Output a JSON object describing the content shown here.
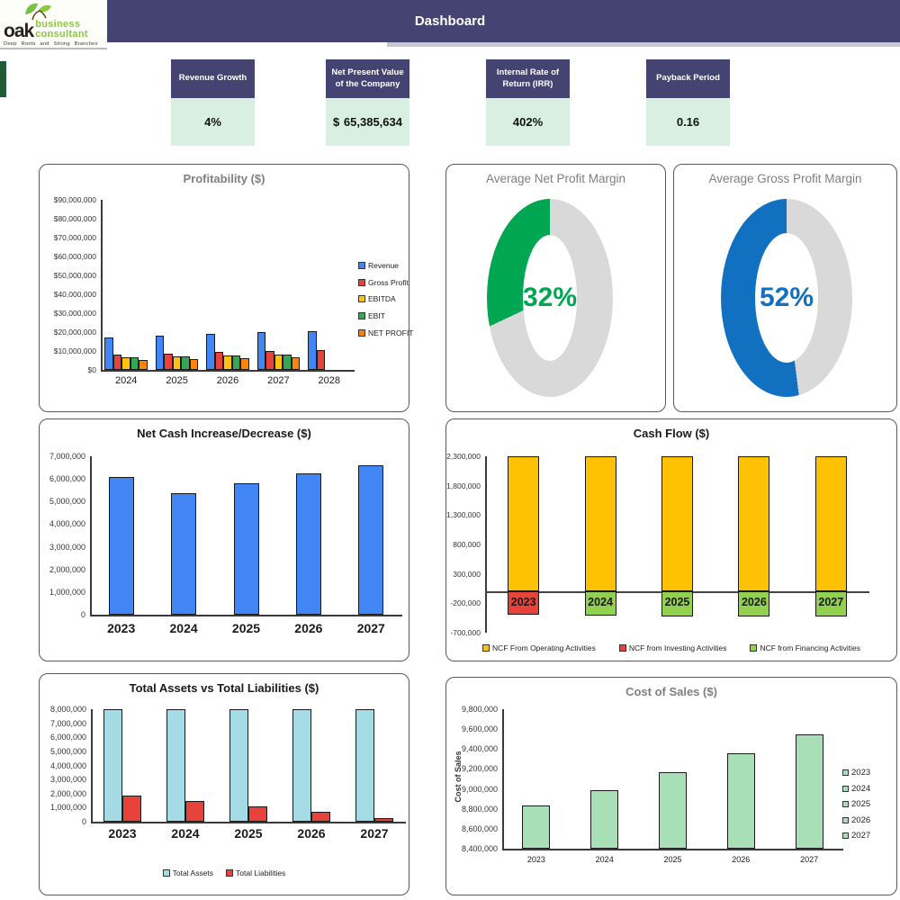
{
  "header": {
    "title": "Dashboard"
  },
  "logo": {
    "word1": "oak",
    "word2": "business",
    "word3": "consultant",
    "tagline": "Deep Roots and Strong Branches",
    "leaf_color": "#7ac143",
    "text_green": "#8dc63f"
  },
  "colors": {
    "header_navy": "#454371",
    "kpi_value_bg": "#d9efe2",
    "accent_green": "#1f5c33"
  },
  "kpis": [
    {
      "label": "Revenue Growth",
      "value": "4%"
    },
    {
      "label": "Net Present Value of the Company",
      "value_prefix": "$",
      "value": "65,385,634"
    },
    {
      "label": "Internal Rate of Return (IRR)",
      "value": "402%"
    },
    {
      "label": "Payback Period",
      "value": "0.16"
    }
  ],
  "chart_data": [
    {
      "id": "profitability",
      "type": "bar",
      "title": "Profitability ($)",
      "categories": [
        "2024",
        "2025",
        "2026",
        "2027",
        "2028"
      ],
      "series": [
        {
          "name": "Revenue",
          "color": "#4285f4",
          "values": [
            17000000,
            18000000,
            19000000,
            20000000,
            20700000
          ]
        },
        {
          "name": "Gross Profit",
          "color": "#e8433a",
          "values": [
            8300000,
            8800000,
            9300000,
            9900000,
            10600000
          ]
        },
        {
          "name": "EBITDA",
          "color": "#ffc20e",
          "values": [
            6900000,
            7100000,
            7600000,
            8200000,
            0
          ]
        },
        {
          "name": "EBIT",
          "color": "#34a853",
          "values": [
            6500000,
            7000000,
            7500000,
            8100000,
            0
          ]
        },
        {
          "name": "NET PROFIT",
          "color": "#ff8308",
          "values": [
            5300000,
            5500000,
            6000000,
            6600000,
            0
          ]
        }
      ],
      "ylim": [
        0,
        90000000
      ],
      "ytick_step": 10000000,
      "ytick_format": "$#,##0",
      "grid": false,
      "legend_position": "right"
    },
    {
      "id": "average_net_profit_margin",
      "type": "pie",
      "title": "Average Net Profit Margin",
      "value_pct": 32,
      "label": "32%",
      "color": "#00a651",
      "track_color": "#d9d9d9"
    },
    {
      "id": "average_gross_profit_margin",
      "type": "pie",
      "title": "Average Gross Profit Margin",
      "value_pct": 52,
      "label": "52%",
      "color": "#1170c0",
      "track_color": "#d9d9d9"
    },
    {
      "id": "net_cash_increase_decrease",
      "type": "bar",
      "title": "Net Cash Increase/Decrease ($)",
      "categories": [
        "2023",
        "2024",
        "2025",
        "2026",
        "2027"
      ],
      "values": [
        6100000,
        5350000,
        5800000,
        6250000,
        6600000
      ],
      "color": "#4285f4",
      "ylim": [
        0,
        7000000
      ],
      "ytick_step": 1000000,
      "grid": false
    },
    {
      "id": "cash_flow",
      "type": "bar",
      "title": "Cash Flow ($)",
      "categories": [
        "2023",
        "2024",
        "2025",
        "2026",
        "2027"
      ],
      "series": [
        {
          "name": "NCF From Operating Activities",
          "color": "#ffc103",
          "values": [
            2300000,
            2300000,
            2300000,
            2300000,
            2300000
          ]
        },
        {
          "name": "NCF from Investing Activities",
          "color": "#e8433a",
          "values": [
            -400000,
            0,
            0,
            0,
            0
          ]
        },
        {
          "name": "NCF from Financing Activities",
          "color": "#92d050",
          "values": [
            0,
            -410000,
            -420000,
            -420000,
            -430000
          ]
        }
      ],
      "ylim": [
        -700000,
        2300000
      ],
      "ytick_step": 500000,
      "grid": false,
      "legend_position": "bottom"
    },
    {
      "id": "total_assets_vs_total_liabilities",
      "type": "bar",
      "title": "Total Assets vs Total Liabilities ($)",
      "categories": [
        "2023",
        "2024",
        "2025",
        "2026",
        "2027"
      ],
      "series": [
        {
          "name": "Total Assets",
          "color": "#a4dbe4",
          "values": [
            8000000,
            8000000,
            8000000,
            8000000,
            8000000
          ]
        },
        {
          "name": "Total Liabilities",
          "color": "#e8433a",
          "values": [
            1850000,
            1480000,
            1090000,
            700000,
            270000
          ]
        }
      ],
      "ylim": [
        0,
        8000000
      ],
      "ytick_step": 1000000,
      "grid": false,
      "legend_position": "bottom"
    },
    {
      "id": "cost_of_sales",
      "type": "bar",
      "title": "Cost of Sales ($)",
      "ylabel": "Cost of Sales",
      "categories": [
        "2023",
        "2024",
        "2025",
        "2026",
        "2027"
      ],
      "values": [
        8830000,
        8990000,
        9170000,
        9360000,
        9550000
      ],
      "color": "#a9dfb6",
      "ylim": [
        8400000,
        9800000
      ],
      "ytick_step": 200000,
      "grid": false,
      "legend_position": "right",
      "legend_entries": [
        "2023",
        "2024",
        "2025",
        "2026",
        "2027"
      ]
    }
  ]
}
